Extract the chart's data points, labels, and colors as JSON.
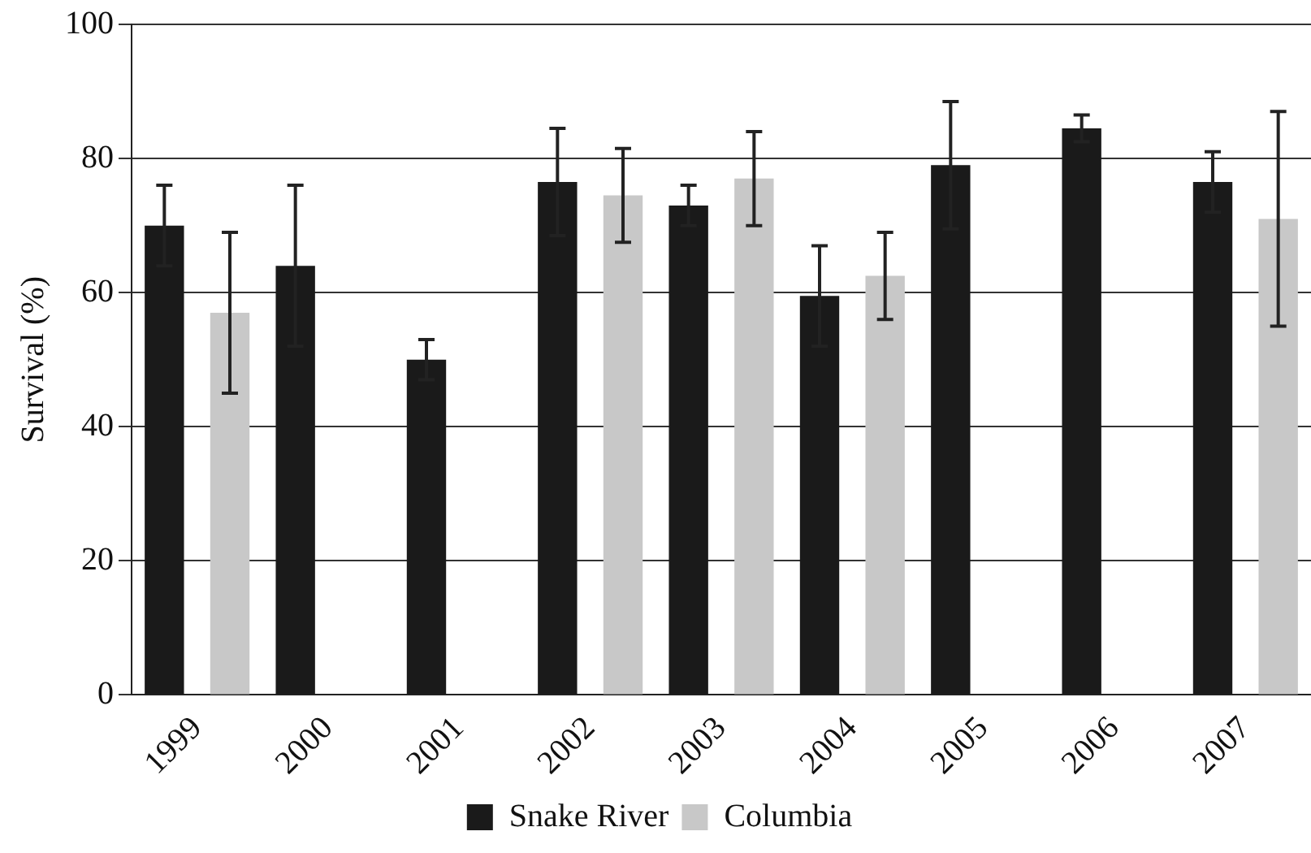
{
  "chart_data": {
    "type": "bar",
    "ylabel": "Survival (%)",
    "categories": [
      "1999",
      "2000",
      "2001",
      "2002",
      "2003",
      "2004",
      "2005",
      "2006",
      "2007"
    ],
    "series": [
      {
        "name": "Snake River",
        "color": "#1a1a1a",
        "values": [
          70,
          64,
          50,
          76.5,
          73,
          59.5,
          79,
          84.5,
          76.5
        ],
        "errors": [
          6,
          12,
          3,
          8,
          3,
          7.5,
          9.5,
          2,
          4.5
        ]
      },
      {
        "name": "Columbia",
        "color": "#c8c8c8",
        "values": [
          57,
          0,
          0,
          74.5,
          77,
          62.5,
          0,
          0,
          71
        ],
        "errors": [
          12,
          null,
          null,
          7,
          7,
          6.5,
          null,
          null,
          16
        ]
      }
    ],
    "ylim": [
      0,
      100
    ],
    "yticks": [
      0,
      20,
      40,
      60,
      80,
      100
    ],
    "grid": "y",
    "legend": "bottom"
  }
}
